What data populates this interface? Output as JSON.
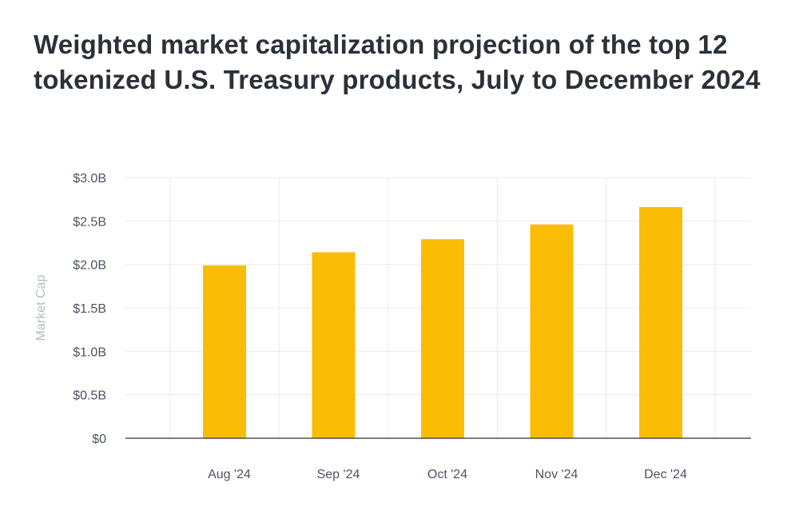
{
  "title": "Weighted market capitalization projection of the top 12 tokenized U.S. Treasury products, July to December 2024",
  "chart_data": {
    "type": "bar",
    "title": "Weighted market capitalization projection of the top 12 tokenized U.S. Treasury products, July to December 2024",
    "xlabel": "",
    "ylabel": "Market Cap",
    "categories": [
      "Aug '24",
      "Sep '24",
      "Oct '24",
      "Nov '24",
      "Dec '24"
    ],
    "values": [
      1.99,
      2.14,
      2.29,
      2.46,
      2.66
    ],
    "unit": "billion USD",
    "ylim": [
      0,
      3.0
    ],
    "yticks": [
      0,
      0.5,
      1.0,
      1.5,
      2.0,
      2.5,
      3.0
    ],
    "ytick_labels": [
      "$0",
      "$0.5B",
      "$1.0B",
      "$1.5B",
      "$2.0B",
      "$2.5B",
      "$3.0B"
    ],
    "grid": true,
    "bar_color": "#fbbc05",
    "grid_color": "#ececec",
    "axis_color": "#2b3138"
  }
}
